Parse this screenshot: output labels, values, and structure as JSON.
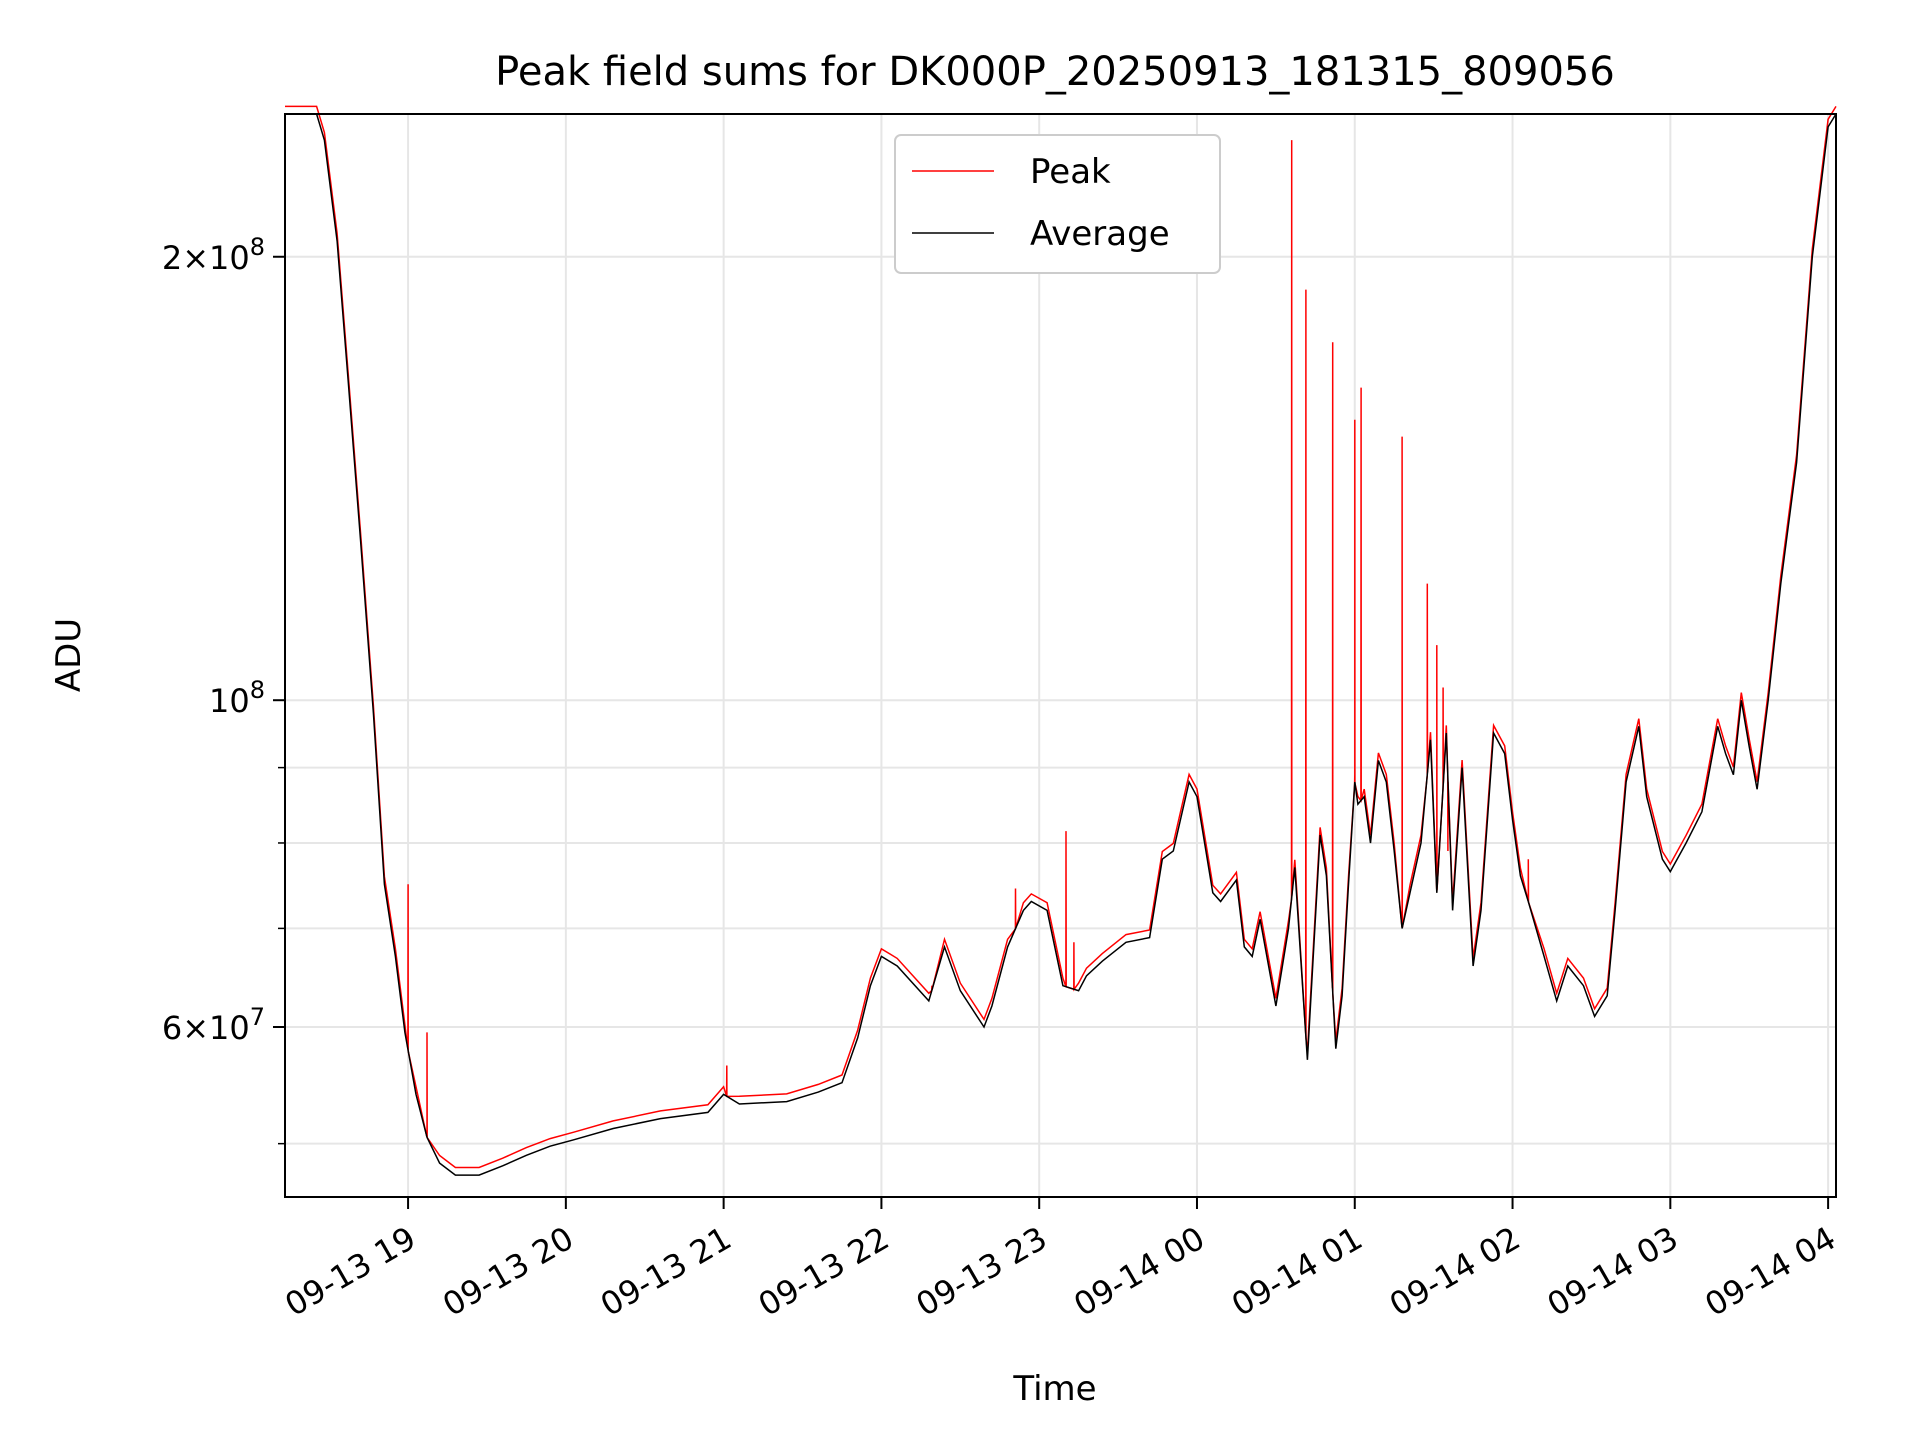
{
  "chart_data": {
    "type": "line",
    "title": "Peak field sums for DK000P_20250913_181315_809056",
    "xlabel": "Time",
    "ylabel": "ADU",
    "yscale": "log",
    "ylim": [
      46000000,
      250000000
    ],
    "xlim_hours": [
      18.22,
      28.05
    ],
    "grid": true,
    "legend_position": "top-center",
    "x_ticks": [
      {
        "h": 19,
        "label": "09-13 19"
      },
      {
        "h": 20,
        "label": "09-13 20"
      },
      {
        "h": 21,
        "label": "09-13 21"
      },
      {
        "h": 22,
        "label": "09-13 22"
      },
      {
        "h": 23,
        "label": "09-13 23"
      },
      {
        "h": 24,
        "label": "09-14 00"
      },
      {
        "h": 25,
        "label": "09-14 01"
      },
      {
        "h": 26,
        "label": "09-14 02"
      },
      {
        "h": 27,
        "label": "09-14 03"
      },
      {
        "h": 28,
        "label": "09-14 04"
      }
    ],
    "y_ticks_labeled": [
      {
        "v": 60000000,
        "base": "6",
        "exp": "7",
        "sci": true
      },
      {
        "v": 100000000,
        "base": "10",
        "exp": "8",
        "sci": false
      },
      {
        "v": 200000000,
        "base": "2",
        "exp": "8",
        "sci": true
      }
    ],
    "y_minor_ticks": [
      50000000,
      70000000,
      80000000,
      90000000
    ],
    "series": [
      {
        "name": "Average",
        "color": "#000000",
        "x_hours": [
          18.22,
          18.42,
          18.47,
          18.55,
          18.62,
          18.7,
          18.78,
          18.85,
          18.92,
          18.98,
          19.05,
          19.12,
          19.2,
          19.3,
          19.45,
          19.6,
          19.75,
          19.9,
          20.05,
          20.3,
          20.6,
          20.9,
          21.0,
          21.1,
          21.4,
          21.6,
          21.75,
          21.85,
          21.93,
          22.0,
          22.1,
          22.3,
          22.4,
          22.5,
          22.65,
          22.7,
          22.8,
          22.9,
          22.95,
          23.05,
          23.15,
          23.25,
          23.3,
          23.4,
          23.55,
          23.7,
          23.78,
          23.85,
          23.95,
          24.0,
          24.1,
          24.15,
          24.25,
          24.3,
          24.35,
          24.4,
          24.5,
          24.58,
          24.62,
          24.7,
          24.78,
          24.82,
          24.88,
          24.92,
          24.96,
          25.0,
          25.02,
          25.06,
          25.1,
          25.15,
          25.2,
          25.25,
          25.3,
          25.35,
          25.42,
          25.48,
          25.52,
          25.58,
          25.62,
          25.68,
          25.75,
          25.8,
          25.88,
          25.95,
          26.0,
          26.05,
          26.1,
          26.2,
          26.28,
          26.35,
          26.45,
          26.52,
          26.6,
          26.65,
          26.72,
          26.8,
          26.85,
          26.95,
          27.0,
          27.1,
          27.2,
          27.3,
          27.35,
          27.4,
          27.45,
          27.5,
          27.55,
          27.62,
          27.7,
          27.8,
          27.9,
          28.0,
          28.05
        ],
        "values": [
          250000000,
          250000000,
          240000000,
          205000000,
          165000000,
          128000000,
          98000000,
          75000000,
          67000000,
          59500000,
          54000000,
          50500000,
          48500000,
          47600000,
          47600000,
          48300000,
          49100000,
          49800000,
          50300000,
          51200000,
          52000000,
          52500000,
          54000000,
          53200000,
          53400000,
          54200000,
          55000000,
          59000000,
          64000000,
          67000000,
          66000000,
          62500000,
          68000000,
          63500000,
          60000000,
          62000000,
          68000000,
          72000000,
          73000000,
          72000000,
          64000000,
          63500000,
          65000000,
          66500000,
          68500000,
          69000000,
          78000000,
          79000000,
          88000000,
          86000000,
          74000000,
          73000000,
          75500000,
          68000000,
          67000000,
          71000000,
          62000000,
          70000000,
          77000000,
          57000000,
          81000000,
          76000000,
          58000000,
          63000000,
          75000000,
          88000000,
          85000000,
          86000000,
          80000000,
          91000000,
          88000000,
          79000000,
          70000000,
          74000000,
          80000000,
          94000000,
          74000000,
          95000000,
          72000000,
          90000000,
          66000000,
          72000000,
          95000000,
          92000000,
          83000000,
          76000000,
          73000000,
          67000000,
          62500000,
          66000000,
          64000000,
          61000000,
          63000000,
          72000000,
          88000000,
          96000000,
          86000000,
          78000000,
          76500000,
          80000000,
          84000000,
          96000000,
          92000000,
          89000000,
          100000000,
          93000000,
          87000000,
          100000000,
          120000000,
          145000000,
          200000000,
          245000000,
          250000000
        ]
      },
      {
        "name": "Peak",
        "color": "#ff0000",
        "spikes": [
          {
            "h": 19.0,
            "v": 75000000
          },
          {
            "h": 19.12,
            "v": 59500000
          },
          {
            "h": 21.02,
            "v": 56500000
          },
          {
            "h": 22.32,
            "v": 64000000
          },
          {
            "h": 22.85,
            "v": 74500000
          },
          {
            "h": 23.17,
            "v": 81500000
          },
          {
            "h": 23.22,
            "v": 68500000
          },
          {
            "h": 24.6,
            "v": 240000000
          },
          {
            "h": 24.69,
            "v": 190000000
          },
          {
            "h": 24.86,
            "v": 175000000
          },
          {
            "h": 25.0,
            "v": 155000000
          },
          {
            "h": 25.04,
            "v": 163000000
          },
          {
            "h": 25.3,
            "v": 151000000
          },
          {
            "h": 25.46,
            "v": 120000000
          },
          {
            "h": 25.52,
            "v": 109000000
          },
          {
            "h": 25.56,
            "v": 102000000
          },
          {
            "h": 25.59,
            "v": 79000000
          },
          {
            "h": 26.1,
            "v": 78000000
          }
        ]
      }
    ]
  }
}
